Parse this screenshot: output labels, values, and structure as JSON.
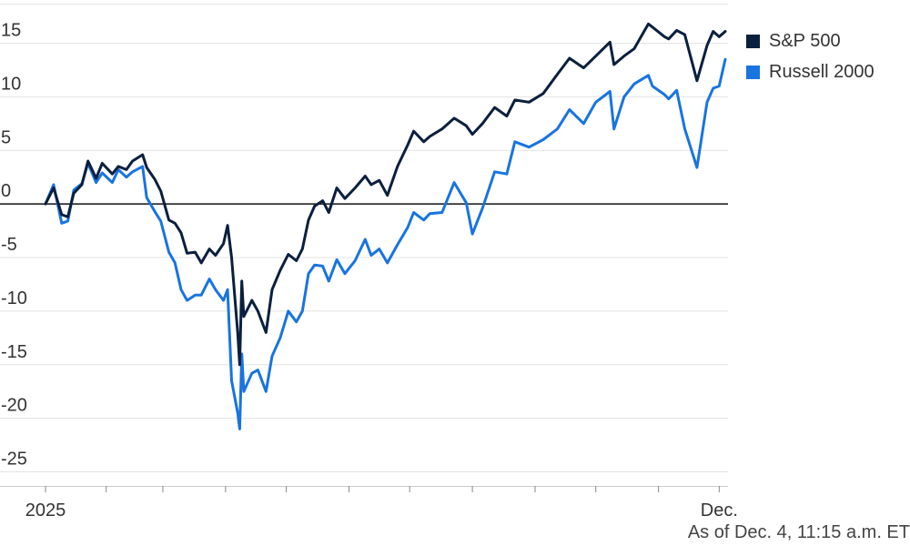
{
  "chart_data": {
    "type": "line",
    "title": "",
    "xlabel": "",
    "ylabel": "",
    "ylim": [
      -27,
      18
    ],
    "yticks": [
      15,
      10,
      5,
      0,
      -5,
      -10,
      -15,
      -20,
      -25
    ],
    "ytick_labels": [
      "15",
      "10",
      "5",
      "0",
      "-5",
      "-10",
      "-15",
      "-20",
      "-25"
    ],
    "x_domain": [
      "2025-01-02",
      "2025-12-04"
    ],
    "x_tick_dates": [
      "2025-01-02",
      "2025-02-01",
      "2025-03-01",
      "2025-04-01",
      "2025-05-01",
      "2025-06-01",
      "2025-07-01",
      "2025-08-01",
      "2025-09-01",
      "2025-10-01",
      "2025-11-01",
      "2025-12-01"
    ],
    "x_labels": [
      {
        "date": "2025-01-02",
        "label": "2025"
      },
      {
        "date": "2025-12-01",
        "label": "Dec."
      }
    ],
    "zero_line": true,
    "grid": true,
    "legend_position": "top-right",
    "series": [
      {
        "name": "S&P 500",
        "color": "#0b1f3f",
        "points": [
          [
            "2025-01-02",
            0
          ],
          [
            "2025-01-06",
            1.5
          ],
          [
            "2025-01-10",
            -1
          ],
          [
            "2025-01-13",
            -1.2
          ],
          [
            "2025-01-16",
            1
          ],
          [
            "2025-01-20",
            1.8
          ],
          [
            "2025-01-23",
            4
          ],
          [
            "2025-01-27",
            2.4
          ],
          [
            "2025-01-30",
            3.8
          ],
          [
            "2025-02-04",
            2.8
          ],
          [
            "2025-02-07",
            3.5
          ],
          [
            "2025-02-11",
            3.2
          ],
          [
            "2025-02-14",
            4
          ],
          [
            "2025-02-19",
            4.6
          ],
          [
            "2025-02-21",
            3.4
          ],
          [
            "2025-02-25",
            2.3
          ],
          [
            "2025-02-28",
            1.2
          ],
          [
            "2025-03-04",
            -1.5
          ],
          [
            "2025-03-07",
            -1.8
          ],
          [
            "2025-03-10",
            -2.7
          ],
          [
            "2025-03-13",
            -4.6
          ],
          [
            "2025-03-17",
            -4.5
          ],
          [
            "2025-03-20",
            -5.5
          ],
          [
            "2025-03-24",
            -4.2
          ],
          [
            "2025-03-27",
            -4.8
          ],
          [
            "2025-03-31",
            -3.7
          ],
          [
            "2025-04-02",
            -2
          ],
          [
            "2025-04-04",
            -5
          ],
          [
            "2025-04-07",
            -12
          ],
          [
            "2025-04-08",
            -15
          ],
          [
            "2025-04-09",
            -7.2
          ],
          [
            "2025-04-10",
            -10.5
          ],
          [
            "2025-04-14",
            -9
          ],
          [
            "2025-04-17",
            -10
          ],
          [
            "2025-04-21",
            -12
          ],
          [
            "2025-04-24",
            -8
          ],
          [
            "2025-04-28",
            -6.2
          ],
          [
            "2025-05-02",
            -4.7
          ],
          [
            "2025-05-06",
            -5.3
          ],
          [
            "2025-05-09",
            -4.2
          ],
          [
            "2025-05-12",
            -1.5
          ],
          [
            "2025-05-15",
            -0.2
          ],
          [
            "2025-05-19",
            0.3
          ],
          [
            "2025-05-22",
            -0.8
          ],
          [
            "2025-05-26",
            1.5
          ],
          [
            "2025-05-30",
            0.5
          ],
          [
            "2025-06-04",
            1.5
          ],
          [
            "2025-06-09",
            2.6
          ],
          [
            "2025-06-12",
            1.8
          ],
          [
            "2025-06-16",
            2.2
          ],
          [
            "2025-06-20",
            0.8
          ],
          [
            "2025-06-25",
            3.5
          ],
          [
            "2025-06-30",
            5.5
          ],
          [
            "2025-07-03",
            6.8
          ],
          [
            "2025-07-08",
            5.8
          ],
          [
            "2025-07-11",
            6.3
          ],
          [
            "2025-07-17",
            7
          ],
          [
            "2025-07-23",
            8
          ],
          [
            "2025-07-29",
            7.3
          ],
          [
            "2025-08-01",
            6.5
          ],
          [
            "2025-08-06",
            7.5
          ],
          [
            "2025-08-12",
            9
          ],
          [
            "2025-08-18",
            8.2
          ],
          [
            "2025-08-22",
            9.7
          ],
          [
            "2025-08-29",
            9.5
          ],
          [
            "2025-09-05",
            10.3
          ],
          [
            "2025-09-12",
            12.1
          ],
          [
            "2025-09-18",
            13.6
          ],
          [
            "2025-09-25",
            12.7
          ],
          [
            "2025-10-01",
            13.8
          ],
          [
            "2025-10-08",
            15.1
          ],
          [
            "2025-10-10",
            13
          ],
          [
            "2025-10-15",
            13.8
          ],
          [
            "2025-10-20",
            14.5
          ],
          [
            "2025-10-27",
            16.8
          ],
          [
            "2025-10-29",
            16.5
          ],
          [
            "2025-11-04",
            15.6
          ],
          [
            "2025-11-06",
            15.4
          ],
          [
            "2025-11-10",
            16.2
          ],
          [
            "2025-11-14",
            15.8
          ],
          [
            "2025-11-20",
            11.5
          ],
          [
            "2025-11-25",
            14.8
          ],
          [
            "2025-11-28",
            16.1
          ],
          [
            "2025-12-01",
            15.6
          ],
          [
            "2025-12-04",
            16.1
          ]
        ]
      },
      {
        "name": "Russell 2000",
        "color": "#1874e0",
        "points": [
          [
            "2025-01-02",
            0
          ],
          [
            "2025-01-06",
            1.8
          ],
          [
            "2025-01-10",
            -1.8
          ],
          [
            "2025-01-13",
            -1.6
          ],
          [
            "2025-01-16",
            1.3
          ],
          [
            "2025-01-20",
            1.9
          ],
          [
            "2025-01-23",
            3.8
          ],
          [
            "2025-01-27",
            2
          ],
          [
            "2025-01-30",
            2.9
          ],
          [
            "2025-02-04",
            2
          ],
          [
            "2025-02-07",
            3.2
          ],
          [
            "2025-02-11",
            2.5
          ],
          [
            "2025-02-14",
            3
          ],
          [
            "2025-02-19",
            3.5
          ],
          [
            "2025-02-21",
            0.6
          ],
          [
            "2025-02-25",
            -0.7
          ],
          [
            "2025-02-28",
            -1.6
          ],
          [
            "2025-03-04",
            -4.5
          ],
          [
            "2025-03-07",
            -5.5
          ],
          [
            "2025-03-10",
            -8
          ],
          [
            "2025-03-13",
            -9
          ],
          [
            "2025-03-17",
            -8.5
          ],
          [
            "2025-03-20",
            -8.5
          ],
          [
            "2025-03-24",
            -7
          ],
          [
            "2025-03-27",
            -8
          ],
          [
            "2025-03-31",
            -9
          ],
          [
            "2025-04-02",
            -8
          ],
          [
            "2025-04-04",
            -16.5
          ],
          [
            "2025-04-07",
            -19.5
          ],
          [
            "2025-04-08",
            -21
          ],
          [
            "2025-04-09",
            -14
          ],
          [
            "2025-04-10",
            -17.5
          ],
          [
            "2025-04-14",
            -15.8
          ],
          [
            "2025-04-17",
            -15.5
          ],
          [
            "2025-04-21",
            -17.5
          ],
          [
            "2025-04-24",
            -14.2
          ],
          [
            "2025-04-28",
            -12.5
          ],
          [
            "2025-05-02",
            -10
          ],
          [
            "2025-05-06",
            -11
          ],
          [
            "2025-05-09",
            -10
          ],
          [
            "2025-05-12",
            -6.5
          ],
          [
            "2025-05-15",
            -5.7
          ],
          [
            "2025-05-19",
            -5.8
          ],
          [
            "2025-05-22",
            -7.2
          ],
          [
            "2025-05-26",
            -5.2
          ],
          [
            "2025-05-30",
            -6.5
          ],
          [
            "2025-06-04",
            -5.3
          ],
          [
            "2025-06-09",
            -3.3
          ],
          [
            "2025-06-12",
            -4.8
          ],
          [
            "2025-06-16",
            -4.2
          ],
          [
            "2025-06-20",
            -5.5
          ],
          [
            "2025-06-25",
            -3.8
          ],
          [
            "2025-06-30",
            -2.2
          ],
          [
            "2025-07-03",
            -0.8
          ],
          [
            "2025-07-08",
            -1.5
          ],
          [
            "2025-07-11",
            -0.9
          ],
          [
            "2025-07-17",
            -0.8
          ],
          [
            "2025-07-23",
            2
          ],
          [
            "2025-07-29",
            0.1
          ],
          [
            "2025-08-01",
            -2.8
          ],
          [
            "2025-08-06",
            -0.4
          ],
          [
            "2025-08-12",
            3
          ],
          [
            "2025-08-18",
            2.8
          ],
          [
            "2025-08-22",
            5.8
          ],
          [
            "2025-08-29",
            5.3
          ],
          [
            "2025-09-05",
            6
          ],
          [
            "2025-09-12",
            7
          ],
          [
            "2025-09-18",
            8.8
          ],
          [
            "2025-09-25",
            7.5
          ],
          [
            "2025-10-01",
            9.5
          ],
          [
            "2025-10-08",
            10.5
          ],
          [
            "2025-10-10",
            7
          ],
          [
            "2025-10-15",
            10
          ],
          [
            "2025-10-20",
            11.2
          ],
          [
            "2025-10-27",
            12
          ],
          [
            "2025-10-29",
            11
          ],
          [
            "2025-11-04",
            10.2
          ],
          [
            "2025-11-06",
            9.8
          ],
          [
            "2025-11-10",
            10.6
          ],
          [
            "2025-11-14",
            7
          ],
          [
            "2025-11-20",
            3.4
          ],
          [
            "2025-11-25",
            9.5
          ],
          [
            "2025-11-28",
            10.8
          ],
          [
            "2025-12-01",
            11
          ],
          [
            "2025-12-04",
            13.5
          ]
        ]
      }
    ]
  },
  "footnote": "As of Dec. 4, 11:15 a.m. ET"
}
